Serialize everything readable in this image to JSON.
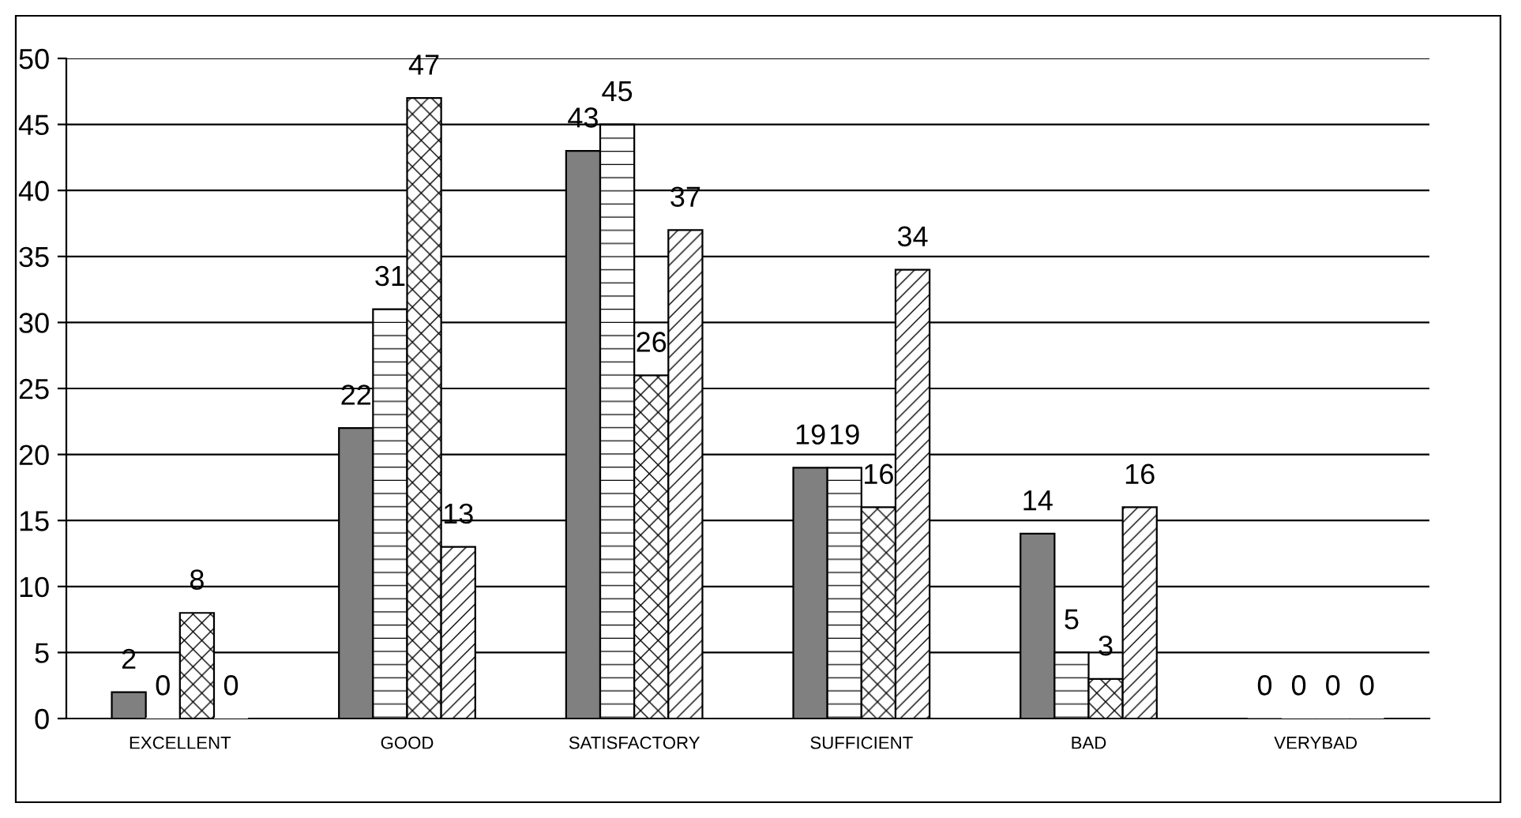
{
  "chart_data": {
    "type": "bar",
    "categories": [
      "EXCELLENT",
      "GOOD",
      "SATISFACTORY",
      "SUFFICIENT",
      "BAD",
      "VERYBAD"
    ],
    "series": [
      {
        "color": "#808080",
        "values": [
          2,
          22,
          43,
          19,
          14,
          0
        ]
      },
      {
        "color": "#ffffff",
        "values": [
          0,
          31,
          45,
          19,
          5,
          0
        ]
      },
      {
        "color": "#ffffff",
        "values": [
          8,
          47,
          26,
          16,
          3,
          0
        ]
      },
      {
        "color": "#ffffff",
        "values": [
          0,
          13,
          37,
          34,
          16,
          0
        ]
      }
    ],
    "ylim": [
      0,
      50
    ],
    "yticks": [
      0,
      5,
      10,
      15,
      20,
      25,
      30,
      35,
      40,
      45,
      50
    ],
    "grid": "y",
    "data_labels": true
  }
}
